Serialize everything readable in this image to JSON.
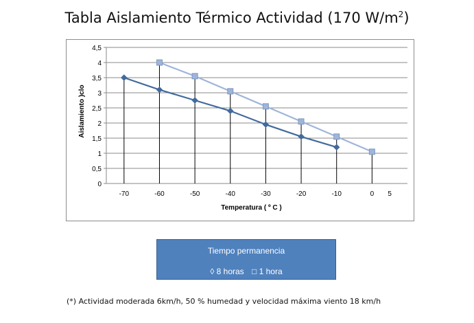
{
  "chart_data": {
    "type": "line",
    "title": "Tabla Aislamiento Térmico Actividad (170 W/m",
    "title_sup": "2",
    "title_end": ")",
    "xlabel": "Temperatura  ( º C )",
    "ylabel": "Aislamiento )clo",
    "xlim": [
      -75,
      10
    ],
    "ylim": [
      0,
      4.5
    ],
    "x_ticks": [
      -70,
      -60,
      -50,
      -40,
      -30,
      -20,
      -10,
      0,
      5
    ],
    "x_tick_labels": [
      "-70",
      "-60",
      "-50",
      "-40",
      "-30",
      "-20",
      "-10",
      "0",
      "5"
    ],
    "y_ticks": [
      0,
      0.5,
      1,
      1.5,
      2,
      2.5,
      3,
      3.5,
      4,
      4.5
    ],
    "y_tick_labels": [
      "0",
      "0,5",
      "1",
      "1,5",
      "2",
      "2,5",
      "3",
      "3,5",
      "4",
      "4,5"
    ],
    "grid": true,
    "series": [
      {
        "name": "8 horas",
        "marker": "diamond",
        "color": "#426a9c",
        "x": [
          -70,
          -60,
          -50,
          -40,
          -30,
          -20,
          -10
        ],
        "y": [
          3.5,
          3.1,
          2.75,
          2.4,
          1.95,
          1.55,
          1.2
        ]
      },
      {
        "name": "1 hora",
        "marker": "square",
        "color": "#9fb5d9",
        "x": [
          -60,
          -50,
          -40,
          -30,
          -20,
          -10,
          0
        ],
        "y": [
          4.0,
          3.55,
          3.05,
          2.55,
          2.05,
          1.55,
          1.05
        ]
      }
    ],
    "drop_lines": [
      -70,
      -60,
      -50,
      -40,
      -30,
      -20,
      -10,
      0
    ]
  },
  "legend": {
    "title": "Tiempo permanencia",
    "entry1": "◊ 8 horas",
    "entry2": "□ 1 hora"
  },
  "footnote": "(*)  Actividad moderada  6km/h, 50 % humedad y velocidad máxima viento 18 km/h"
}
